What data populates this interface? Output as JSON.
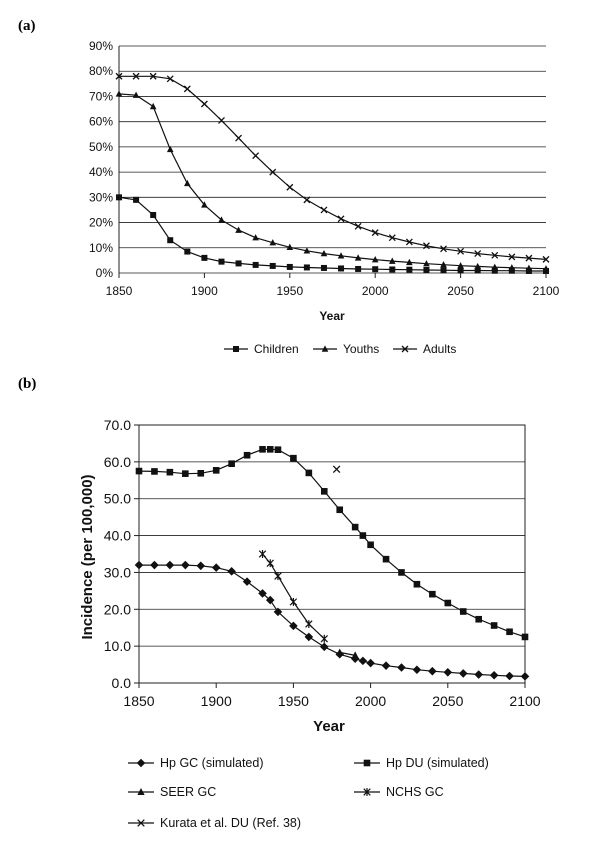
{
  "chart_data": [
    {
      "panel_label": "(a)",
      "type": "line",
      "xlabel": "Year",
      "ylabel": "",
      "xlim": [
        1850,
        2100
      ],
      "ylim": [
        0,
        90
      ],
      "x_ticks": [
        "1850",
        "1900",
        "1950",
        "2000",
        "2050",
        "2100"
      ],
      "y_ticks": [
        "0%",
        "10%",
        "20%",
        "30%",
        "40%",
        "50%",
        "60%",
        "70%",
        "80%",
        "90%"
      ],
      "grid": true,
      "legend_position": "bottom",
      "series": [
        {
          "name": "Children",
          "marker": "square",
          "x": [
            1850,
            1860,
            1870,
            1880,
            1890,
            1900,
            1910,
            1920,
            1930,
            1940,
            1950,
            1960,
            1970,
            1980,
            1990,
            2000,
            2010,
            2020,
            2030,
            2040,
            2050,
            2060,
            2070,
            2080,
            2090,
            2100
          ],
          "y": [
            30,
            29,
            23,
            13,
            8.5,
            6,
            4.5,
            3.8,
            3.2,
            2.8,
            2.4,
            2.2,
            2.0,
            1.8,
            1.6,
            1.5,
            1.4,
            1.3,
            1.2,
            1.1,
            1.0,
            1.0,
            0.9,
            0.9,
            0.8,
            0.8
          ]
        },
        {
          "name": "Youths",
          "marker": "triangle",
          "x": [
            1850,
            1860,
            1870,
            1880,
            1890,
            1900,
            1910,
            1920,
            1930,
            1940,
            1950,
            1960,
            1970,
            1980,
            1990,
            2000,
            2010,
            2020,
            2030,
            2040,
            2050,
            2060,
            2070,
            2080,
            2090,
            2100
          ],
          "y": [
            71,
            70.5,
            66,
            49,
            35.5,
            27,
            21,
            17,
            14,
            12,
            10.2,
            8.8,
            7.7,
            6.8,
            6,
            5.3,
            4.7,
            4.2,
            3.7,
            3.3,
            2.9,
            2.6,
            2.3,
            2.1,
            1.9,
            1.7
          ]
        },
        {
          "name": "Adults",
          "marker": "x",
          "x": [
            1850,
            1860,
            1870,
            1880,
            1890,
            1900,
            1910,
            1920,
            1930,
            1940,
            1950,
            1960,
            1970,
            1980,
            1990,
            2000,
            2010,
            2020,
            2030,
            2040,
            2050,
            2060,
            2070,
            2080,
            2090,
            2100
          ],
          "y": [
            78,
            78,
            78,
            77,
            73,
            67,
            60.5,
            53.5,
            46.5,
            40,
            34,
            29,
            25,
            21.5,
            18.5,
            16,
            14,
            12.3,
            10.8,
            9.6,
            8.6,
            7.7,
            7,
            6.4,
            5.9,
            5.4
          ]
        }
      ]
    },
    {
      "panel_label": "(b)",
      "type": "line",
      "xlabel": "Year",
      "ylabel": "Incidence (per 100,000)",
      "xlim": [
        1850,
        2100
      ],
      "ylim": [
        0,
        70
      ],
      "x_ticks": [
        "1850",
        "1900",
        "1950",
        "2000",
        "2050",
        "2100"
      ],
      "y_ticks": [
        "0.0",
        "10.0",
        "20.0",
        "30.0",
        "40.0",
        "50.0",
        "60.0",
        "70.0"
      ],
      "grid": true,
      "legend_position": "bottom",
      "series": [
        {
          "name": "Hp GC (simulated)",
          "marker": "diamond",
          "x": [
            1850,
            1860,
            1870,
            1880,
            1890,
            1900,
            1910,
            1920,
            1930,
            1935,
            1940,
            1950,
            1960,
            1970,
            1980,
            1990,
            1995,
            2000,
            2010,
            2020,
            2030,
            2040,
            2050,
            2060,
            2070,
            2080,
            2090,
            2100
          ],
          "y": [
            32,
            32,
            32,
            32,
            31.8,
            31.3,
            30.3,
            27.5,
            24.3,
            22.5,
            19.3,
            15.5,
            12.5,
            9.8,
            7.8,
            6.6,
            6,
            5.4,
            4.7,
            4.2,
            3.6,
            3.2,
            2.9,
            2.6,
            2.3,
            2.1,
            1.9,
            1.8
          ]
        },
        {
          "name": "Hp DU (simulated)",
          "marker": "square",
          "x": [
            1850,
            1860,
            1870,
            1880,
            1890,
            1900,
            1910,
            1920,
            1930,
            1935,
            1940,
            1950,
            1960,
            1970,
            1980,
            1990,
            1995,
            2000,
            2010,
            2020,
            2030,
            2040,
            2050,
            2060,
            2070,
            2080,
            2090,
            2100
          ],
          "y": [
            57.5,
            57.4,
            57.2,
            56.8,
            56.9,
            57.7,
            59.5,
            61.8,
            63.4,
            63.4,
            63.3,
            61,
            57,
            52,
            47,
            42.3,
            40,
            37.5,
            33.6,
            30,
            26.8,
            24.1,
            21.7,
            19.4,
            17.3,
            15.6,
            13.9,
            12.5
          ]
        },
        {
          "name": "SEER GC",
          "marker": "triangle",
          "x": [
            1980,
            1990
          ],
          "y": [
            8.3,
            7.5
          ]
        },
        {
          "name": "NCHS GC",
          "marker": "asterisk",
          "x": [
            1930,
            1935,
            1940,
            1950,
            1960,
            1970
          ],
          "y": [
            35,
            32.5,
            29,
            22,
            16,
            12
          ]
        },
        {
          "name": "Kurata et al. DU (Ref. 38)",
          "marker": "x",
          "x": [
            1978
          ],
          "y": [
            58
          ]
        }
      ]
    }
  ]
}
